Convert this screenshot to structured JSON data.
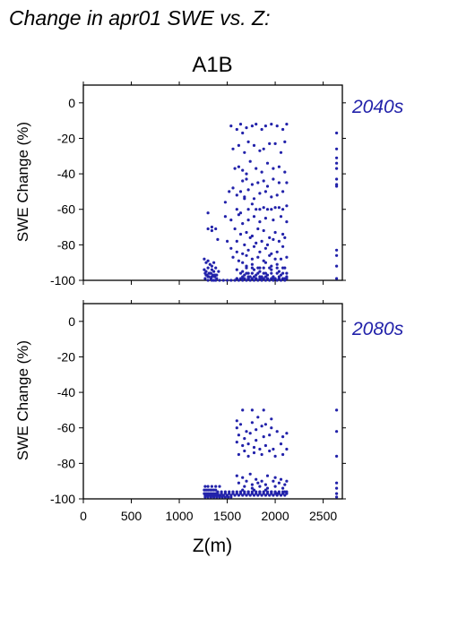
{
  "figure": {
    "title": "Change in apr01 SWE vs. Z:",
    "scenario": "A1B",
    "xlabel": "Z(m)"
  },
  "colors": {
    "points": "#2222aa",
    "period_label": "#2222aa",
    "axis": "#000000"
  },
  "chart_data": [
    {
      "type": "scatter",
      "period_label": "2040s",
      "ylabel": "SWE Change (%)",
      "xlim": [
        0,
        2700
      ],
      "ylim": [
        -100,
        10
      ],
      "xticks": [
        0,
        500,
        1000,
        1500,
        2000,
        2500
      ],
      "yticks": [
        0,
        -20,
        -40,
        -60,
        -80,
        -100
      ],
      "series": [
        {
          "x": [
            1300,
            1340,
            1380,
            1480,
            1520,
            1560,
            1600,
            1640,
            1680,
            1720,
            1760,
            1800,
            1840,
            1880,
            1920,
            1960,
            2000,
            2040,
            2080,
            2120,
            1540,
            1600,
            1640,
            1660,
            1700,
            1760,
            1800,
            1860,
            1900,
            1960,
            2020,
            2080,
            2120,
            1560,
            1620,
            1680,
            1720,
            1780,
            1840,
            1880,
            1940,
            2000,
            2060,
            2100,
            1580,
            1620,
            1660,
            1700,
            1740,
            1800,
            1860,
            1920,
            1980,
            2040,
            2100,
            1660,
            1700,
            1760,
            1820,
            1880,
            1920,
            1980,
            2040,
            2120,
            1600,
            1640,
            1680,
            1720,
            1780,
            1840,
            1900,
            1960,
            2020,
            2080,
            1480,
            1540,
            1620,
            1660,
            1720,
            1780,
            1840,
            1900,
            1980,
            2060,
            2120,
            1300,
            1340,
            1580,
            1640,
            1700,
            1760,
            1820,
            1880,
            1940,
            2000,
            2080,
            1400,
            1500,
            1600,
            1680,
            1740,
            1800,
            1860,
            1920,
            1980,
            2040,
            2100,
            1540,
            1600,
            1660,
            1720,
            1780,
            1840,
            1900,
            1960,
            2020,
            2080,
            1560,
            1620,
            1700,
            1760,
            1820,
            1880,
            1940,
            2000,
            2060,
            2120,
            1660,
            1700,
            1760,
            1840,
            1900,
            1960,
            2020,
            2080,
            1600,
            1660,
            1720,
            1780,
            1840,
            1900,
            1960,
            2040,
            2120,
            1680,
            1740,
            1800,
            1860,
            1920,
            1980,
            2060,
            1600,
            1660,
            1720,
            1800,
            1860,
            1920,
            1980,
            2040,
            2100,
            1640,
            1700,
            1760,
            1820,
            1880,
            1960,
            2020,
            2080,
            1660,
            1720,
            1780,
            1840,
            1900,
            1980,
            2040,
            2120,
            1700,
            1760,
            1820,
            1880,
            1940,
            2020,
            2100,
            1300,
            1340,
            1380,
            1420,
            1460,
            1500,
            1540,
            1580,
            1620,
            1660,
            1700,
            1740,
            1780,
            1820,
            1860,
            1900,
            1940,
            1980,
            2020,
            2060,
            2100,
            1600,
            1640,
            1680,
            1720,
            1760,
            1800,
            1840,
            1880,
            1920,
            1960,
            2000,
            2040,
            2080,
            2120,
            1260,
            1280,
            1300,
            1320,
            1340,
            1360,
            1380,
            1260,
            1280,
            1300,
            1320,
            1340,
            1360,
            1380,
            1270,
            1290,
            1310,
            1330,
            1350,
            1370,
            1390,
            1410,
            1270,
            1300,
            1330,
            1360,
            1390,
            1280,
            1310,
            1340,
            1370,
            2640,
            2640,
            2640,
            2640,
            2640,
            2640,
            2640,
            2640,
            2640,
            2640,
            2640,
            2640
          ],
          "y": [
            -62,
            -70,
            -71,
            -56,
            -50,
            -48,
            -60,
            -62,
            -54,
            -60,
            -57,
            -60,
            -60,
            -59,
            -60,
            -60,
            -59,
            -59,
            -60,
            -58,
            -13,
            -15,
            -12,
            -17,
            -14,
            -13,
            -12,
            -15,
            -13,
            -12,
            -13,
            -15,
            -12,
            -26,
            -24,
            -28,
            -22,
            -24,
            -27,
            -26,
            -23,
            -23,
            -28,
            -22,
            -37,
            -36,
            -38,
            -40,
            -33,
            -37,
            -39,
            -34,
            -37,
            -36,
            -39,
            -44,
            -43,
            -46,
            -45,
            -44,
            -47,
            -43,
            -45,
            -45,
            -52,
            -50,
            -53,
            -49,
            -54,
            -51,
            -50,
            -53,
            -52,
            -50,
            -64,
            -66,
            -63,
            -68,
            -66,
            -64,
            -67,
            -65,
            -66,
            -64,
            -67,
            -71,
            -72,
            -71,
            -74,
            -73,
            -75,
            -71,
            -72,
            -76,
            -73,
            -74,
            -77,
            -78,
            -78,
            -80,
            -76,
            -79,
            -78,
            -80,
            -77,
            -78,
            -76,
            -82,
            -84,
            -85,
            -83,
            -81,
            -84,
            -82,
            -85,
            -84,
            -81,
            -87,
            -89,
            -86,
            -88,
            -87,
            -89,
            -86,
            -88,
            -88,
            -87,
            -90,
            -92,
            -91,
            -93,
            -90,
            -92,
            -91,
            -93,
            -94,
            -95,
            -96,
            -94,
            -95,
            -96,
            -94,
            -95,
            -96,
            -97,
            -98,
            -97,
            -98,
            -97,
            -98,
            -97,
            -99,
            -99,
            -99,
            -99,
            -99,
            -99,
            -99,
            -99,
            -99,
            -96,
            -96,
            -96,
            -96,
            -96,
            -96,
            -96,
            -96,
            -98,
            -98,
            -98,
            -98,
            -98,
            -98,
            -98,
            -98,
            -93,
            -93,
            -93,
            -93,
            -93,
            -93,
            -93,
            -100,
            -100,
            -100,
            -100,
            -100,
            -100,
            -100,
            -100,
            -100,
            -100,
            -100,
            -100,
            -100,
            -100,
            -100,
            -100,
            -100,
            -100,
            -100,
            -100,
            -100,
            -99,
            -99,
            -99,
            -99,
            -99,
            -99,
            -99,
            -99,
            -99,
            -99,
            -99,
            -99,
            -99,
            -99,
            -88,
            -90,
            -89,
            -91,
            -92,
            -90,
            -93,
            -94,
            -95,
            -93,
            -96,
            -94,
            -95,
            -97,
            -96,
            -97,
            -98,
            -96,
            -97,
            -98,
            -97,
            -95,
            -99,
            -98,
            -99,
            -100,
            -99,
            -97,
            -96,
            -98,
            -97,
            -17,
            -26,
            -31,
            -34,
            -37,
            -43,
            -46,
            -47,
            -83,
            -86,
            -92,
            -99
          ]
        }
      ]
    },
    {
      "type": "scatter",
      "period_label": "2080s",
      "ylabel": "SWE Change (%)",
      "xlim": [
        0,
        2700
      ],
      "ylim": [
        -100,
        10
      ],
      "xticks": [
        0,
        500,
        1000,
        1500,
        2000,
        2500
      ],
      "yticks": [
        0,
        -20,
        -40,
        -60,
        -80,
        -100
      ],
      "series": [
        {
          "x": [
            1600,
            1660,
            1760,
            1820,
            1880,
            1960,
            1600,
            1640,
            1700,
            1760,
            1800,
            1860,
            1900,
            1960,
            1620,
            1680,
            1740,
            1800,
            1880,
            1940,
            2020,
            2080,
            2120,
            1600,
            1660,
            1720,
            1780,
            1840,
            1900,
            1980,
            2060,
            2120,
            1620,
            1680,
            1720,
            1780,
            1860,
            1940,
            2000,
            2080,
            1600,
            1660,
            1740,
            1800,
            1860,
            1920,
            2000,
            2060,
            2120,
            1620,
            1700,
            1760,
            1820,
            1900,
            1980,
            2040,
            2100,
            1680,
            1760,
            1840,
            1920,
            2000,
            2080,
            1660,
            1720,
            1780,
            1840,
            1900,
            1960,
            2020,
            2100,
            1260,
            1280,
            1300,
            1320,
            1340,
            1360,
            1380,
            1400,
            1440,
            1480,
            1520,
            1560,
            1600,
            1640,
            1680,
            1720,
            1760,
            1800,
            1840,
            1880,
            1920,
            1960,
            2000,
            2040,
            2080,
            2120,
            1260,
            1280,
            1300,
            1320,
            1340,
            1360,
            1380,
            1400,
            1440,
            1480,
            1520,
            1560,
            1600,
            1640,
            1680,
            1720,
            1760,
            1800,
            1840,
            1880,
            1920,
            1960,
            2000,
            2040,
            2080,
            2120,
            1270,
            1290,
            1310,
            1330,
            1350,
            1370,
            1390,
            1410,
            1430,
            1460,
            1500,
            1540,
            1580,
            1620,
            1660,
            1700,
            1740,
            1780,
            1820,
            1860,
            1900,
            1940,
            1980,
            2020,
            2060,
            2100,
            1270,
            1300,
            1330,
            1360,
            1390,
            1420,
            1450,
            1480,
            1510,
            1540,
            1270,
            1300,
            1340,
            1380,
            1420,
            2640,
            2640,
            2640,
            2640,
            2640,
            2640,
            2640
          ],
          "y": [
            -56,
            -50,
            -50,
            -54,
            -50,
            -55,
            -60,
            -58,
            -62,
            -57,
            -61,
            -59,
            -58,
            -60,
            -64,
            -66,
            -63,
            -67,
            -65,
            -64,
            -62,
            -65,
            -63,
            -68,
            -70,
            -69,
            -71,
            -72,
            -70,
            -72,
            -69,
            -72,
            -75,
            -73,
            -76,
            -74,
            -75,
            -73,
            -76,
            -75,
            -87,
            -88,
            -86,
            -89,
            -90,
            -87,
            -88,
            -89,
            -90,
            -91,
            -90,
            -92,
            -91,
            -92,
            -90,
            -91,
            -92,
            -93,
            -94,
            -93,
            -94,
            -93,
            -94,
            -95,
            -96,
            -95,
            -96,
            -95,
            -96,
            -97,
            -96,
            -95,
            -95,
            -95,
            -95,
            -95,
            -95,
            -95,
            -96,
            -96,
            -96,
            -96,
            -96,
            -96,
            -96,
            -96,
            -96,
            -96,
            -96,
            -96,
            -96,
            -96,
            -96,
            -96,
            -96,
            -96,
            -96,
            -97,
            -97,
            -97,
            -97,
            -97,
            -97,
            -97,
            -97,
            -97,
            -97,
            -97,
            -97,
            -97,
            -97,
            -97,
            -97,
            -97,
            -97,
            -97,
            -97,
            -97,
            -97,
            -97,
            -97,
            -97,
            -97,
            -98,
            -98,
            -98,
            -98,
            -98,
            -98,
            -98,
            -98,
            -98,
            -98,
            -98,
            -98,
            -98,
            -98,
            -98,
            -98,
            -98,
            -98,
            -98,
            -98,
            -98,
            -98,
            -98,
            -98,
            -98,
            -98,
            -99,
            -99,
            -99,
            -99,
            -99,
            -99,
            -99,
            -99,
            -99,
            -99,
            -93,
            -93,
            -93,
            -93,
            -93,
            -50,
            -62,
            -76,
            -91,
            -94,
            -97,
            -99
          ]
        }
      ]
    }
  ]
}
